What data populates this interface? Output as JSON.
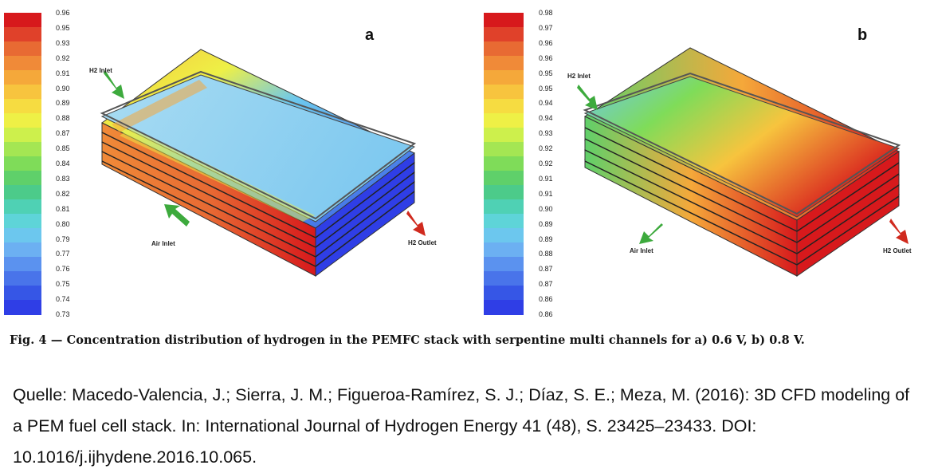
{
  "figure": {
    "caption": "Fig. 4 — Concentration distribution of hydrogen in the PEMFC stack with serpentine multi channels for a) 0.6 V, b) 0.8 V.",
    "panels": [
      {
        "id": "a",
        "letter": "a",
        "colorbar_ticks": [
          "0.96",
          "0.95",
          "0.93",
          "0.92",
          "0.91",
          "0.90",
          "0.89",
          "0.88",
          "0.87",
          "0.85",
          "0.84",
          "0.83",
          "0.82",
          "0.81",
          "0.80",
          "0.79",
          "0.77",
          "0.76",
          "0.75",
          "0.74",
          "0.73"
        ],
        "labels": {
          "h2_inlet": "H2 Inlet",
          "air_inlet": "Air Inlet",
          "h2_outlet": "H2 Outlet"
        },
        "arrow_colors": {
          "inlet": "#3daa3d",
          "outlet": "#d02a1e"
        }
      },
      {
        "id": "b",
        "letter": "b",
        "colorbar_ticks": [
          "0.98",
          "0.97",
          "0.96",
          "0.96",
          "0.95",
          "0.95",
          "0.94",
          "0.94",
          "0.93",
          "0.92",
          "0.92",
          "0.91",
          "0.91",
          "0.90",
          "0.89",
          "0.89",
          "0.88",
          "0.87",
          "0.87",
          "0.86",
          "0.86"
        ],
        "labels": {
          "h2_inlet": "H2 Inlet",
          "air_inlet": "Air Inlet",
          "h2_outlet": "H2 Outlet"
        },
        "arrow_colors": {
          "inlet": "#3daa3d",
          "outlet": "#d02a1e"
        }
      }
    ],
    "colormap": [
      "#d7191c",
      "#e0412a",
      "#e86a33",
      "#f08a38",
      "#f5a83a",
      "#f7c43e",
      "#f6dc41",
      "#eef046",
      "#cdf04c",
      "#a4e653",
      "#7fdc59",
      "#5fd06a",
      "#4ccb8a",
      "#4fd1b4",
      "#5ed4d8",
      "#6cc7ee",
      "#6cb0f2",
      "#5b92ef",
      "#4974ea",
      "#3656e6",
      "#2f3ee6"
    ],
    "source": {
      "text": "Quelle: Macedo-Valencia, J.; Sierra, J. M.; Figueroa-Ramírez, S. J.; Díaz, S. E.; Meza, M. (2016): 3D CFD modeling of a PEM fuel cell stack. In: International Journal of Hydrogen Energy 41 (48), S. 23425–23433. DOI: 10.1016/j.ijhydene.2016.10.065."
    }
  }
}
